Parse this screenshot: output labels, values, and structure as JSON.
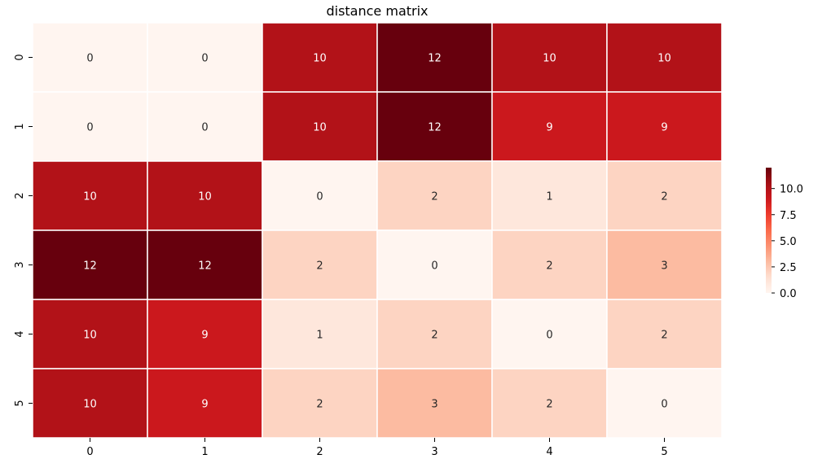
{
  "chart_data": {
    "type": "heatmap",
    "title": "distance matrix",
    "xlabel": "",
    "ylabel": "",
    "x_categories": [
      "0",
      "1",
      "2",
      "3",
      "4",
      "5"
    ],
    "y_categories": [
      "0",
      "1",
      "2",
      "3",
      "4",
      "5"
    ],
    "values": [
      [
        0,
        0,
        10,
        12,
        10,
        10
      ],
      [
        0,
        0,
        10,
        12,
        9,
        9
      ],
      [
        10,
        10,
        0,
        2,
        1,
        2
      ],
      [
        12,
        12,
        2,
        0,
        2,
        3
      ],
      [
        10,
        9,
        1,
        2,
        0,
        2
      ],
      [
        10,
        9,
        2,
        3,
        2,
        0
      ]
    ],
    "colormap": "Reds",
    "value_range": [
      0,
      12
    ],
    "colorbar": {
      "ticks": [
        0,
        2.5,
        5,
        7.5,
        10
      ],
      "tick_labels": [
        "0.0",
        "2.5",
        "5.0",
        "7.5",
        "10.0"
      ]
    },
    "cell_border_color": "#ffffff",
    "annotations": true,
    "colors": {
      "min": "#fff5f0",
      "max": "#67000d"
    }
  }
}
